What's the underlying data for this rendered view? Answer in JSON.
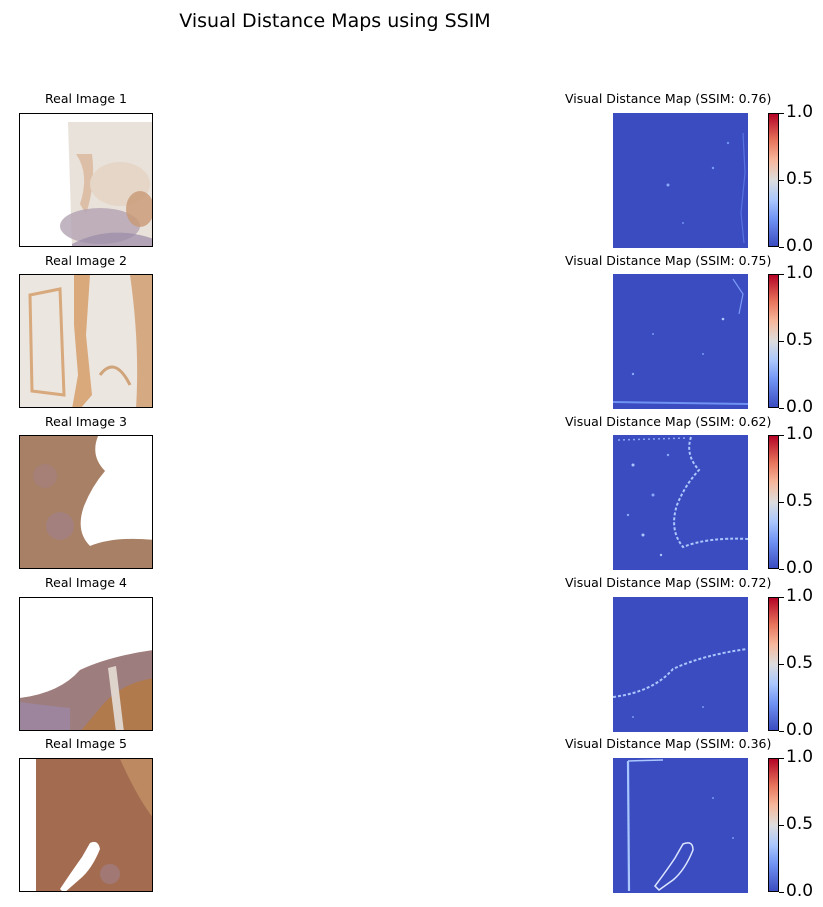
{
  "chart_data": {
    "type": "heatmap",
    "title": "Visual Distance Maps using SSIM",
    "colormap": "coolwarm",
    "colorbar": {
      "ticks": [
        "0.0",
        "0.5",
        "1.0"
      ],
      "range": [
        0,
        1
      ]
    },
    "rows": [
      {
        "real_title": "Real Image 1",
        "map_title": "Visual Distance Map (SSIM: 0.76)",
        "ssim": 0.76
      },
      {
        "real_title": "Real Image 2",
        "map_title": "Visual Distance Map (SSIM: 0.75)",
        "ssim": 0.75
      },
      {
        "real_title": "Real Image 3",
        "map_title": "Visual Distance Map (SSIM: 0.62)",
        "ssim": 0.62
      },
      {
        "real_title": "Real Image 4",
        "map_title": "Visual Distance Map (SSIM: 0.72)",
        "ssim": 0.72
      },
      {
        "real_title": "Real Image 5",
        "map_title": "Visual Distance Map (SSIM: 0.36)",
        "ssim": 0.36
      }
    ]
  },
  "colors": {
    "map_low": "#3b4cc0",
    "map_high": "#b40426",
    "tissue_brown": "#b47a4c",
    "tissue_purple": "#8f7fa8",
    "tissue_light": "#e8e0d6"
  }
}
